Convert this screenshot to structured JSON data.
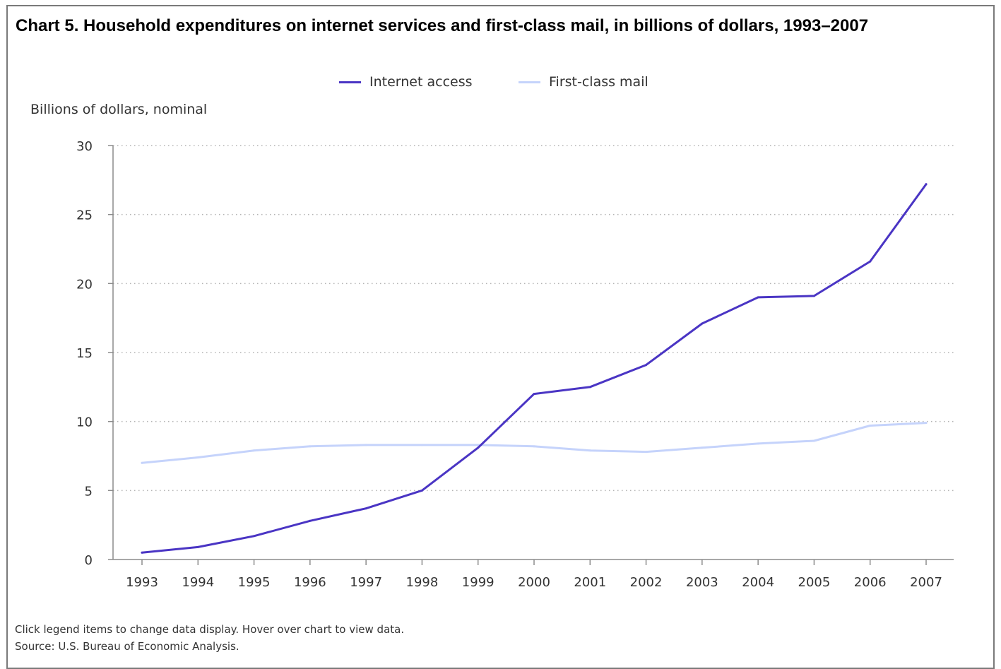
{
  "title": "Chart 5. Household expenditures on internet services and first-class mail, in billions of dollars, 1993–2007",
  "legend": [
    {
      "label": "Internet access",
      "color": "#4a35c4"
    },
    {
      "label": "First-class mail",
      "color": "#c5d3fb"
    }
  ],
  "footnotes": {
    "hint": "Click legend items to change data display. Hover over chart to view data.",
    "source": "Source: U.S. Bureau of Economic Analysis."
  },
  "chart_data": {
    "type": "line",
    "title": "Chart 5. Household expenditures on internet services and first-class mail, in billions of dollars, 1993–2007",
    "ylabel": "Billions of dollars, nominal",
    "xlabel": "",
    "x": [
      "1993",
      "1994",
      "1995",
      "1996",
      "1997",
      "1998",
      "1999",
      "2000",
      "2001",
      "2002",
      "2003",
      "2004",
      "2005",
      "2006",
      "2007"
    ],
    "ylim": [
      0,
      30
    ],
    "yticks": [
      0,
      5,
      10,
      15,
      20,
      25,
      30
    ],
    "grid": "horizontal dotted",
    "legend_position": "top-center",
    "series": [
      {
        "name": "Internet access",
        "color": "#4a35c4",
        "values": [
          0.5,
          0.9,
          1.7,
          2.8,
          3.7,
          5.0,
          8.1,
          12.0,
          12.5,
          14.1,
          17.1,
          19.0,
          19.1,
          21.6,
          27.2
        ]
      },
      {
        "name": "First-class mail",
        "color": "#c5d3fb",
        "values": [
          7.0,
          7.4,
          7.9,
          8.2,
          8.3,
          8.3,
          8.3,
          8.2,
          7.9,
          7.8,
          8.1,
          8.4,
          8.6,
          9.7,
          9.9
        ]
      }
    ]
  }
}
